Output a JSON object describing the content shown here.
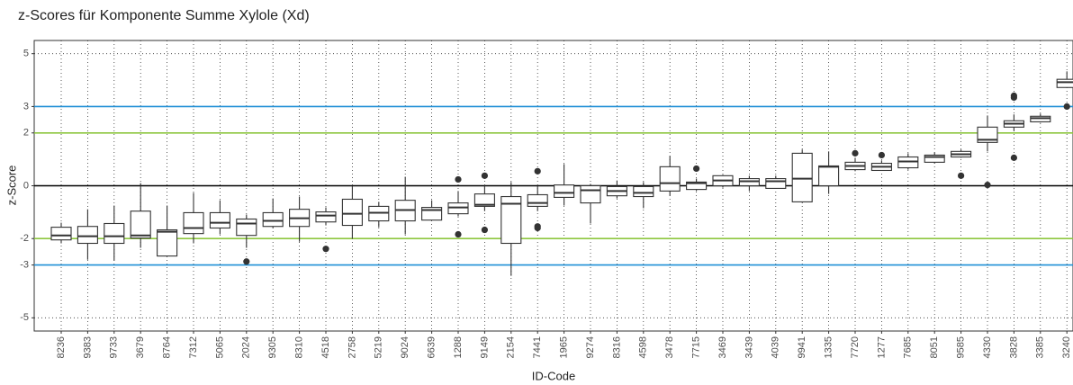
{
  "chart_data": {
    "type": "box",
    "title": "z-Scores für Komponente Summe Xylole (Xd)",
    "xlabel": "ID-Code",
    "ylabel": "z-Score",
    "categories": [
      "8236",
      "9383",
      "9733",
      "3679",
      "8764",
      "7312",
      "5065",
      "2024",
      "9305",
      "8310",
      "4518",
      "2758",
      "5219",
      "9024",
      "6639",
      "1288",
      "9149",
      "2154",
      "7441",
      "1965",
      "9274",
      "8316",
      "4598",
      "3478",
      "7715",
      "3469",
      "3439",
      "4039",
      "9941",
      "1335",
      "7720",
      "1277",
      "7685",
      "8051",
      "9585",
      "4330",
      "3828",
      "3385",
      "3240"
    ],
    "min": [
      -2.18,
      -2.8,
      -2.83,
      -2.35,
      -2.66,
      -2.18,
      -1.84,
      -2.35,
      -1.6,
      -2.12,
      -1.5,
      -2.01,
      -1.57,
      -1.84,
      -1.3,
      -1.16,
      -0.96,
      -3.41,
      -0.96,
      -0.75,
      -1.43,
      -0.48,
      -0.85,
      -0.38,
      -0.2,
      -0.07,
      -0.2,
      -0.1,
      -0.61,
      -0.31,
      0.55,
      0.58,
      0.61,
      0.85,
      1.06,
      1.3,
      2.08,
      2.39,
      3.72
    ],
    "q1": [
      -2.05,
      -2.18,
      -2.18,
      -1.98,
      -2.66,
      -1.81,
      -1.6,
      -1.88,
      -1.54,
      -1.54,
      -1.37,
      -1.5,
      -1.33,
      -1.33,
      -1.3,
      -1.06,
      -0.78,
      -2.18,
      -0.78,
      -0.44,
      -0.65,
      -0.38,
      -0.41,
      -0.2,
      -0.14,
      0,
      0,
      -0.1,
      -0.61,
      0,
      0.61,
      0.58,
      0.68,
      0.89,
      1.09,
      1.64,
      2.22,
      2.42,
      3.72
    ],
    "median": [
      -1.88,
      -1.91,
      -1.91,
      -1.88,
      -1.74,
      -1.6,
      -1.4,
      -1.43,
      -1.33,
      -1.23,
      -1.13,
      -1.06,
      -1.02,
      -0.92,
      -0.92,
      -0.82,
      -0.72,
      -0.68,
      -0.65,
      -0.27,
      -0.17,
      -0.2,
      -0.27,
      0.1,
      0.1,
      0.2,
      0.17,
      0.17,
      0.27,
      0.72,
      0.75,
      0.72,
      0.92,
      1.09,
      1.19,
      1.74,
      2.35,
      2.56,
      3.92
    ],
    "q3": [
      -1.57,
      -1.54,
      -1.43,
      -0.96,
      -1.67,
      -1.02,
      -1.02,
      -1.26,
      -1.02,
      -0.89,
      -0.99,
      -0.51,
      -0.78,
      -0.55,
      -0.82,
      -0.65,
      -0.31,
      -0.41,
      -0.34,
      0.03,
      0,
      -0.03,
      -0.03,
      0.72,
      0.14,
      0.38,
      0.27,
      0.27,
      1.23,
      0.75,
      0.89,
      0.85,
      1.09,
      1.16,
      1.3,
      2.22,
      2.46,
      2.63,
      4.03
    ],
    "max": [
      -1.4,
      -0.89,
      -0.75,
      0.1,
      -0.75,
      -0.27,
      -0.55,
      -1.09,
      -0.48,
      -0.41,
      -0.82,
      0,
      -0.61,
      0.34,
      -0.55,
      -0.2,
      0.03,
      0.14,
      0,
      0.82,
      0.07,
      0.2,
      0.14,
      1.13,
      0.27,
      0.41,
      0.38,
      0.38,
      1.37,
      1.3,
      1.06,
      0.96,
      1.23,
      1.26,
      1.37,
      2.66,
      2.7,
      2.73,
      4.33
    ],
    "outliers": [
      [],
      [],
      [],
      [],
      [],
      [],
      [],
      [
        -2.87
      ],
      [],
      [],
      [
        -2.39
      ],
      [],
      [],
      [],
      [],
      [
        0.24,
        -1.84
      ],
      [
        0.38,
        -1.67
      ],
      [],
      [
        0.55,
        -1.54,
        -1.6
      ],
      [],
      [],
      [],
      [],
      [],
      [
        0.65
      ],
      [],
      [],
      [],
      [],
      [],
      [
        1.23
      ],
      [
        1.16
      ],
      [],
      [],
      [
        0.38
      ],
      [
        0.03
      ],
      [
        3.41,
        3.34,
        1.06
      ],
      [],
      [
        3.0
      ]
    ],
    "ylim": [
      -5.5,
      5.5
    ],
    "yticks": [
      5,
      3,
      2,
      0,
      -2,
      -3,
      -5
    ],
    "grid": true,
    "reference_lines": [
      {
        "value": 3,
        "color": "#1f8fd6"
      },
      {
        "value": 2,
        "color": "#8dc63f"
      },
      {
        "value": 0,
        "color": "#000000"
      },
      {
        "value": -2,
        "color": "#8dc63f"
      },
      {
        "value": -3,
        "color": "#1f8fd6"
      }
    ]
  }
}
